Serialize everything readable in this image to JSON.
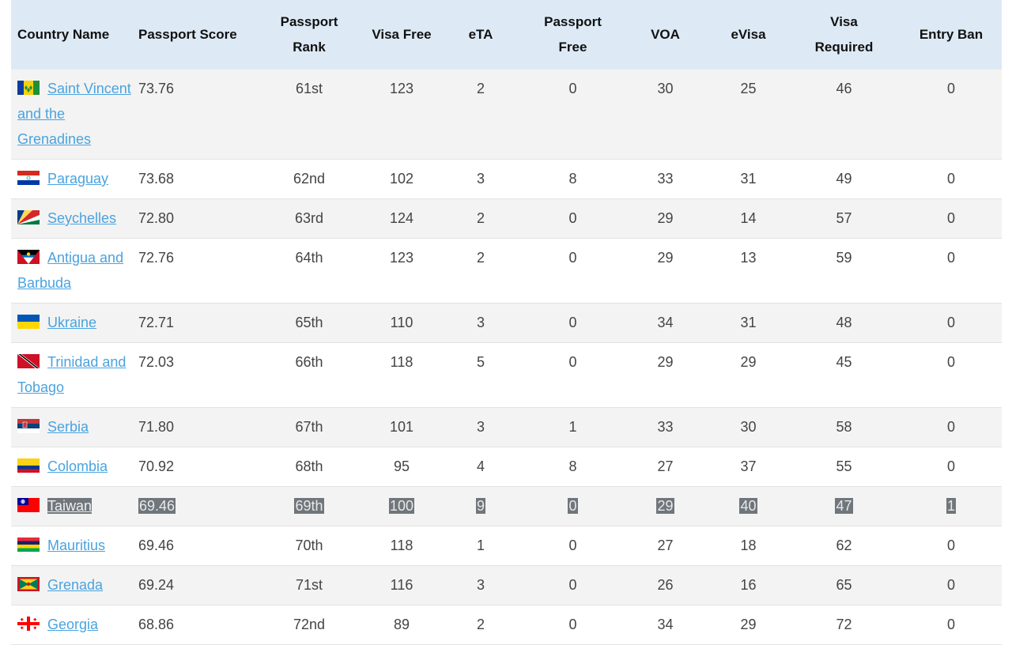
{
  "headers": {
    "country": "Country Name",
    "score": "Passport Score",
    "rank": [
      "Passport",
      "Rank"
    ],
    "visa_free": "Visa Free",
    "eta": "eTA",
    "passport_free": [
      "Passport",
      "Free"
    ],
    "voa": "VOA",
    "evisa": "eVisa",
    "visa_required": [
      "Visa",
      "Required"
    ],
    "entry_ban": "Entry Ban"
  },
  "rows": [
    {
      "flag": "saint-vincent-flag-icon",
      "name": "Saint Vincent and the Grenadines",
      "score": "73.76",
      "rank": "61st",
      "visa_free": "123",
      "eta": "2",
      "passport_free": "0",
      "voa": "30",
      "evisa": "25",
      "visa_required": "46",
      "entry_ban": "0",
      "highlight": false
    },
    {
      "flag": "paraguay-flag-icon",
      "name": "Paraguay",
      "score": "73.68",
      "rank": "62nd",
      "visa_free": "102",
      "eta": "3",
      "passport_free": "8",
      "voa": "33",
      "evisa": "31",
      "visa_required": "49",
      "entry_ban": "0",
      "highlight": false
    },
    {
      "flag": "seychelles-flag-icon",
      "name": "Seychelles",
      "score": "72.80",
      "rank": "63rd",
      "visa_free": "124",
      "eta": "2",
      "passport_free": "0",
      "voa": "29",
      "evisa": "14",
      "visa_required": "57",
      "entry_ban": "0",
      "highlight": false
    },
    {
      "flag": "antigua-flag-icon",
      "name": "Antigua and Barbuda",
      "score": "72.76",
      "rank": "64th",
      "visa_free": "123",
      "eta": "2",
      "passport_free": "0",
      "voa": "29",
      "evisa": "13",
      "visa_required": "59",
      "entry_ban": "0",
      "highlight": false
    },
    {
      "flag": "ukraine-flag-icon",
      "name": "Ukraine",
      "score": "72.71",
      "rank": "65th",
      "visa_free": "110",
      "eta": "3",
      "passport_free": "0",
      "voa": "34",
      "evisa": "31",
      "visa_required": "48",
      "entry_ban": "0",
      "highlight": false
    },
    {
      "flag": "trinidad-flag-icon",
      "name": "Trinidad and Tobago",
      "score": "72.03",
      "rank": "66th",
      "visa_free": "118",
      "eta": "5",
      "passport_free": "0",
      "voa": "29",
      "evisa": "29",
      "visa_required": "45",
      "entry_ban": "0",
      "highlight": false
    },
    {
      "flag": "serbia-flag-icon",
      "name": "Serbia",
      "score": "71.80",
      "rank": "67th",
      "visa_free": "101",
      "eta": "3",
      "passport_free": "1",
      "voa": "33",
      "evisa": "30",
      "visa_required": "58",
      "entry_ban": "0",
      "highlight": false
    },
    {
      "flag": "colombia-flag-icon",
      "name": "Colombia",
      "score": "70.92",
      "rank": "68th",
      "visa_free": "95",
      "eta": "4",
      "passport_free": "8",
      "voa": "27",
      "evisa": "37",
      "visa_required": "55",
      "entry_ban": "0",
      "highlight": false
    },
    {
      "flag": "taiwan-flag-icon",
      "name": "Taiwan",
      "score": "69.46",
      "rank": "69th",
      "visa_free": "100",
      "eta": "9",
      "passport_free": "0",
      "voa": "29",
      "evisa": "40",
      "visa_required": "47",
      "entry_ban": "1",
      "highlight": true
    },
    {
      "flag": "mauritius-flag-icon",
      "name": "Mauritius",
      "score": "69.46",
      "rank": "70th",
      "visa_free": "118",
      "eta": "1",
      "passport_free": "0",
      "voa": "27",
      "evisa": "18",
      "visa_required": "62",
      "entry_ban": "0",
      "highlight": false
    },
    {
      "flag": "grenada-flag-icon",
      "name": "Grenada",
      "score": "69.24",
      "rank": "71st",
      "visa_free": "116",
      "eta": "3",
      "passport_free": "0",
      "voa": "26",
      "evisa": "16",
      "visa_required": "65",
      "entry_ban": "0",
      "highlight": false
    },
    {
      "flag": "georgia-flag-icon",
      "name": "Georgia",
      "score": "68.86",
      "rank": "72nd",
      "visa_free": "89",
      "eta": "2",
      "passport_free": "0",
      "voa": "34",
      "evisa": "29",
      "visa_required": "72",
      "entry_ban": "0",
      "highlight": false
    }
  ],
  "colors": {
    "header_bg": "#ddeaf6",
    "link": "#4aa3df",
    "highlight": "#6f767c",
    "row_alt": "#f3f3f3"
  }
}
